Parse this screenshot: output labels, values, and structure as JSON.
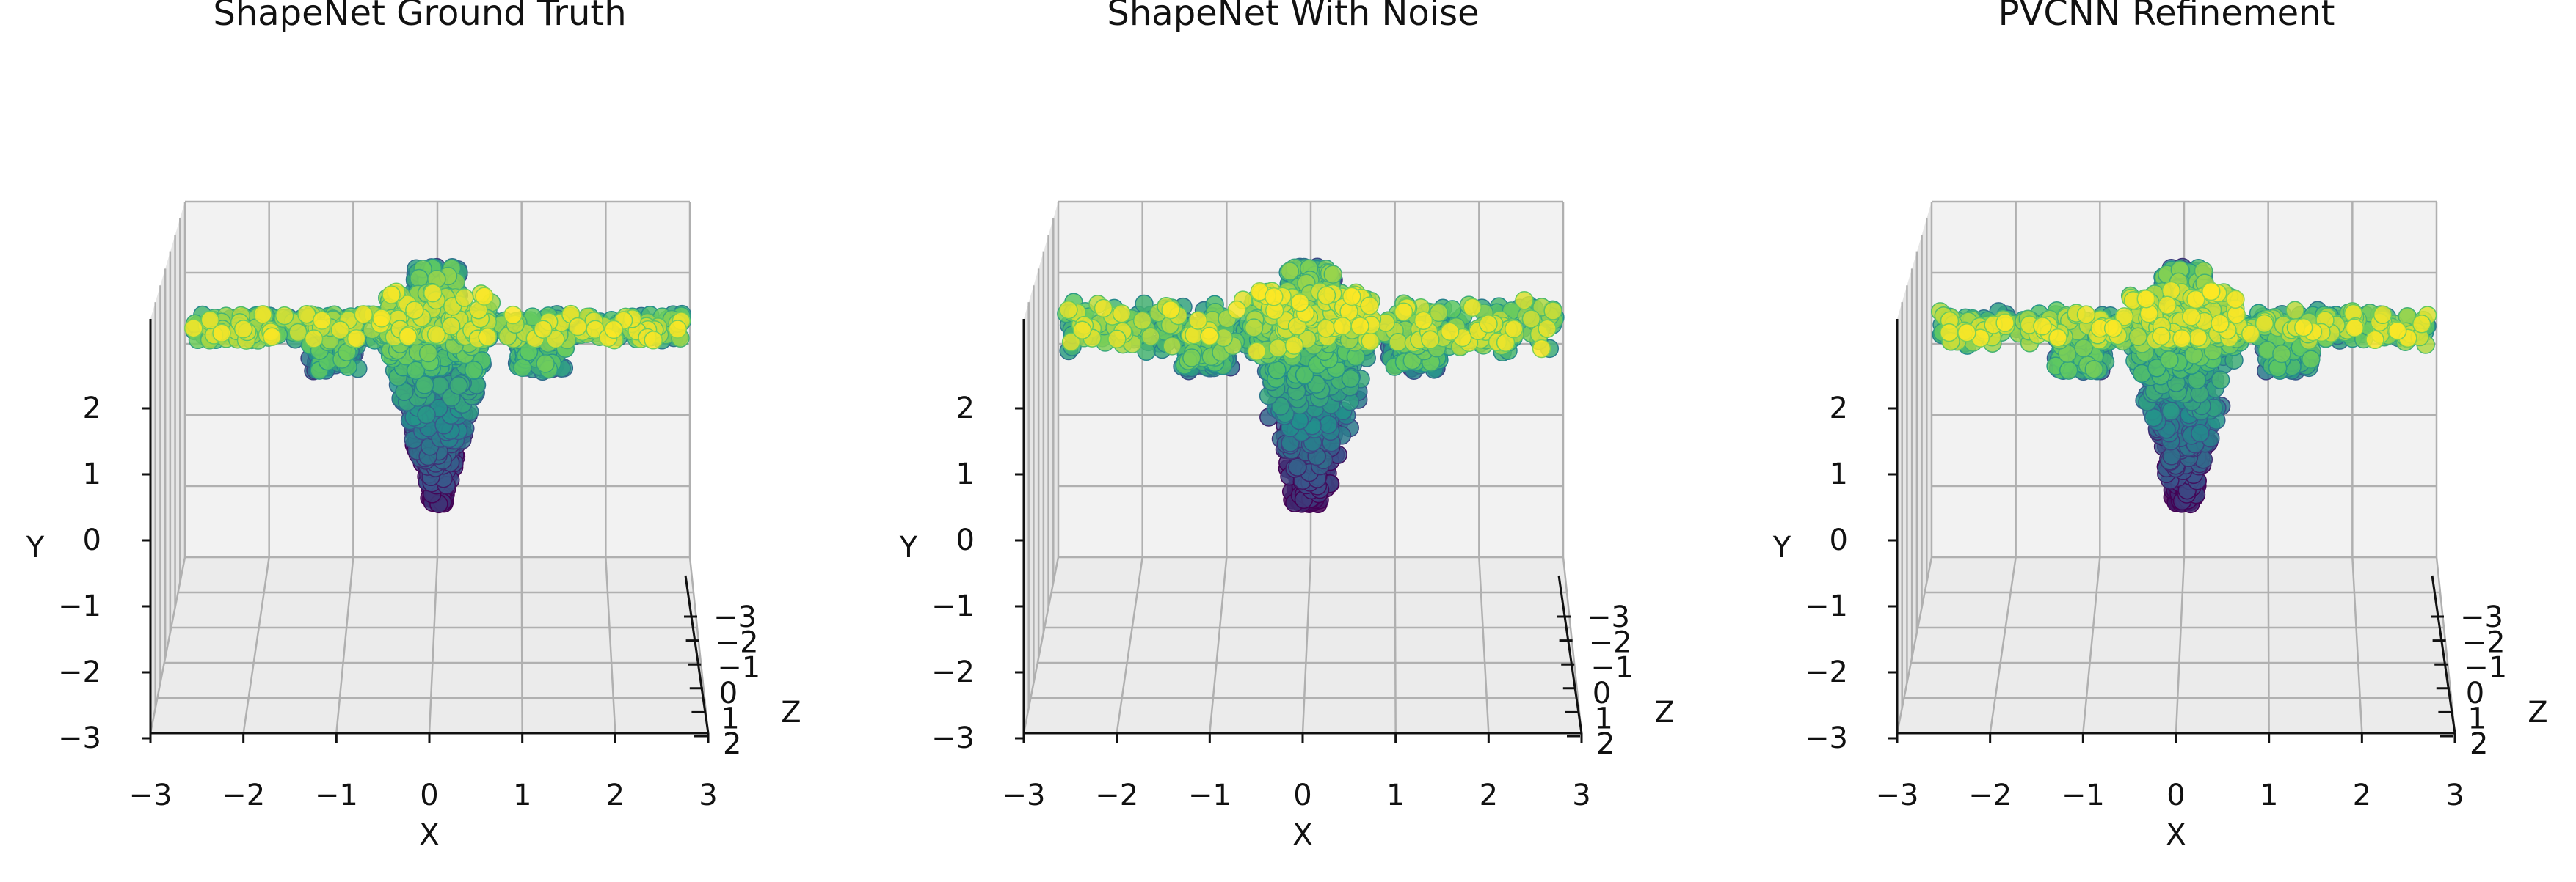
{
  "chart_data": [
    {
      "type": "scatter",
      "title": "ShapeNet Ground Truth",
      "xlabel": "X",
      "ylabel": "Y",
      "zlabel": "Z",
      "xlim": [
        -3,
        3
      ],
      "ylim": [
        -3,
        3
      ],
      "zlim": [
        -3,
        2
      ],
      "x_ticks": [
        "−3",
        "−2",
        "−1",
        "0",
        "1",
        "2",
        "3"
      ],
      "y_ticks": [
        "−3",
        "−2",
        "−1",
        "0",
        "1",
        "2"
      ],
      "z_ticks": [
        "−3",
        "−2",
        "−1",
        "0",
        "1",
        "2"
      ],
      "grid": true,
      "colormap": "viridis",
      "shape": "airplane point cloud viewed from the front",
      "noise": 0.0
    },
    {
      "type": "scatter",
      "title": "ShapeNet With Noise",
      "xlabel": "X",
      "ylabel": "Y",
      "zlabel": "Z",
      "xlim": [
        -3,
        3
      ],
      "ylim": [
        -3,
        3
      ],
      "zlim": [
        -3,
        2
      ],
      "x_ticks": [
        "−3",
        "−2",
        "−1",
        "0",
        "1",
        "2",
        "3"
      ],
      "y_ticks": [
        "−3",
        "−2",
        "−1",
        "0",
        "1",
        "2"
      ],
      "z_ticks": [
        "−3",
        "−2",
        "−1",
        "0",
        "1",
        "2"
      ],
      "grid": true,
      "colormap": "viridis",
      "shape": "airplane point cloud viewed from the front",
      "noise": 0.06
    },
    {
      "type": "scatter",
      "title": "PVCNN Refinement",
      "xlabel": "X",
      "ylabel": "Y",
      "zlabel": "Z",
      "xlim": [
        -3,
        3
      ],
      "ylim": [
        -3,
        3
      ],
      "zlim": [
        -3,
        2
      ],
      "x_ticks": [
        "−3",
        "−2",
        "−1",
        "0",
        "1",
        "2",
        "3"
      ],
      "y_ticks": [
        "−3",
        "−2",
        "−1",
        "0",
        "1",
        "2"
      ],
      "z_ticks": [
        "−3",
        "−2",
        "−1",
        "0",
        "1",
        "2"
      ],
      "grid": true,
      "colormap": "viridis",
      "shape": "airplane point cloud viewed from the front",
      "noise": 0.02
    }
  ],
  "colors": {
    "pane": "#f2f2f2",
    "grid": "#b0b0b0",
    "axis": "#111111",
    "viridis": [
      "#440154",
      "#3b528b",
      "#21918c",
      "#5ec962",
      "#fde725"
    ]
  }
}
